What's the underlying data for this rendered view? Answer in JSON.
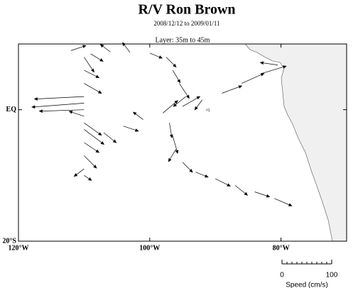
{
  "chart_data": {
    "type": "vector-map",
    "title": "R/V Ron Brown",
    "subtitle": "2008/12/12 to 2009/01/11",
    "layer": "Layer: 35m to 45m",
    "xlim": [
      -120,
      -70
    ],
    "ylim": [
      -20,
      10
    ],
    "xticks": [
      {
        "value": -120,
        "label": "120°W"
      },
      {
        "value": -100,
        "label": "100°W"
      },
      {
        "value": -80,
        "label": "80°W"
      }
    ],
    "yticks": [
      {
        "value": 0,
        "label": "EQ"
      },
      {
        "value": -20,
        "label": "20°S"
      }
    ],
    "color": "#000000",
    "land_color": "#f0f0f0",
    "scale": {
      "ticks": [
        0,
        100
      ],
      "label": "Speed (cm/s)"
    },
    "vectors": [
      {
        "lon": -112,
        "lat": 9,
        "u": 30,
        "v": 10
      },
      {
        "lon": -109,
        "lat": 8.5,
        "u": 25,
        "v": -15
      },
      {
        "lon": -106,
        "lat": 8.8,
        "u": -20,
        "v": 15
      },
      {
        "lon": -103,
        "lat": 8.7,
        "u": -15,
        "v": 20
      },
      {
        "lon": -100,
        "lat": 8.6,
        "u": 25,
        "v": -10
      },
      {
        "lon": -97.5,
        "lat": 8,
        "u": 20,
        "v": -20
      },
      {
        "lon": -96.5,
        "lat": 6,
        "u": 15,
        "v": -25
      },
      {
        "lon": -95.5,
        "lat": 4,
        "u": 20,
        "v": -30
      },
      {
        "lon": -94.5,
        "lat": 2,
        "u": -25,
        "v": -20
      },
      {
        "lon": -110,
        "lat": 8,
        "u": 20,
        "v": -30
      },
      {
        "lon": -110,
        "lat": 6,
        "u": 30,
        "v": -15
      },
      {
        "lon": -110,
        "lat": 4,
        "u": 35,
        "v": -20
      },
      {
        "lon": -110,
        "lat": 2,
        "u": -100,
        "v": -5
      },
      {
        "lon": -110,
        "lat": 1,
        "u": -105,
        "v": -8
      },
      {
        "lon": -110,
        "lat": 0,
        "u": -90,
        "v": -3
      },
      {
        "lon": -110,
        "lat": -1,
        "u": -30,
        "v": 10
      },
      {
        "lon": -110,
        "lat": -2,
        "u": 35,
        "v": -25
      },
      {
        "lon": -110,
        "lat": -3,
        "u": 40,
        "v": -30
      },
      {
        "lon": -110,
        "lat": -5,
        "u": 30,
        "v": -20
      },
      {
        "lon": -110,
        "lat": -7,
        "u": 25,
        "v": -25
      },
      {
        "lon": -110,
        "lat": -9,
        "u": -20,
        "v": -15
      },
      {
        "lon": -110,
        "lat": -10,
        "u": 15,
        "v": -10
      },
      {
        "lon": -107,
        "lat": -3.5,
        "u": 25,
        "v": -20
      },
      {
        "lon": -104,
        "lat": -2.5,
        "u": 30,
        "v": -10
      },
      {
        "lon": -101,
        "lat": -1.5,
        "u": -20,
        "v": 15
      },
      {
        "lon": -98,
        "lat": -0.5,
        "u": 30,
        "v": 25
      },
      {
        "lon": -95,
        "lat": 0.5,
        "u": 35,
        "v": 20
      },
      {
        "lon": -92,
        "lat": 1.5,
        "u": -15,
        "v": -20
      },
      {
        "lon": -89,
        "lat": 2.5,
        "u": 40,
        "v": 15
      },
      {
        "lon": -86,
        "lat": 4,
        "u": 45,
        "v": 20
      },
      {
        "lon": -83,
        "lat": 5.5,
        "u": 50,
        "v": 15
      },
      {
        "lon": -80.5,
        "lat": 6.8,
        "u": -35,
        "v": 5
      },
      {
        "lon": -97,
        "lat": -2,
        "u": 5,
        "v": -30
      },
      {
        "lon": -96.5,
        "lat": -4,
        "u": 10,
        "v": -35
      },
      {
        "lon": -96,
        "lat": -6,
        "u": -15,
        "v": -25
      },
      {
        "lon": -95,
        "lat": -8,
        "u": 20,
        "v": -20
      },
      {
        "lon": -93,
        "lat": -9.5,
        "u": 25,
        "v": -10
      },
      {
        "lon": -90,
        "lat": -10.5,
        "u": 30,
        "v": -15
      },
      {
        "lon": -87,
        "lat": -11.5,
        "u": 25,
        "v": -20
      },
      {
        "lon": -84,
        "lat": -12.5,
        "u": 30,
        "v": -10
      },
      {
        "lon": -81,
        "lat": -13.5,
        "u": 35,
        "v": -15
      }
    ]
  }
}
